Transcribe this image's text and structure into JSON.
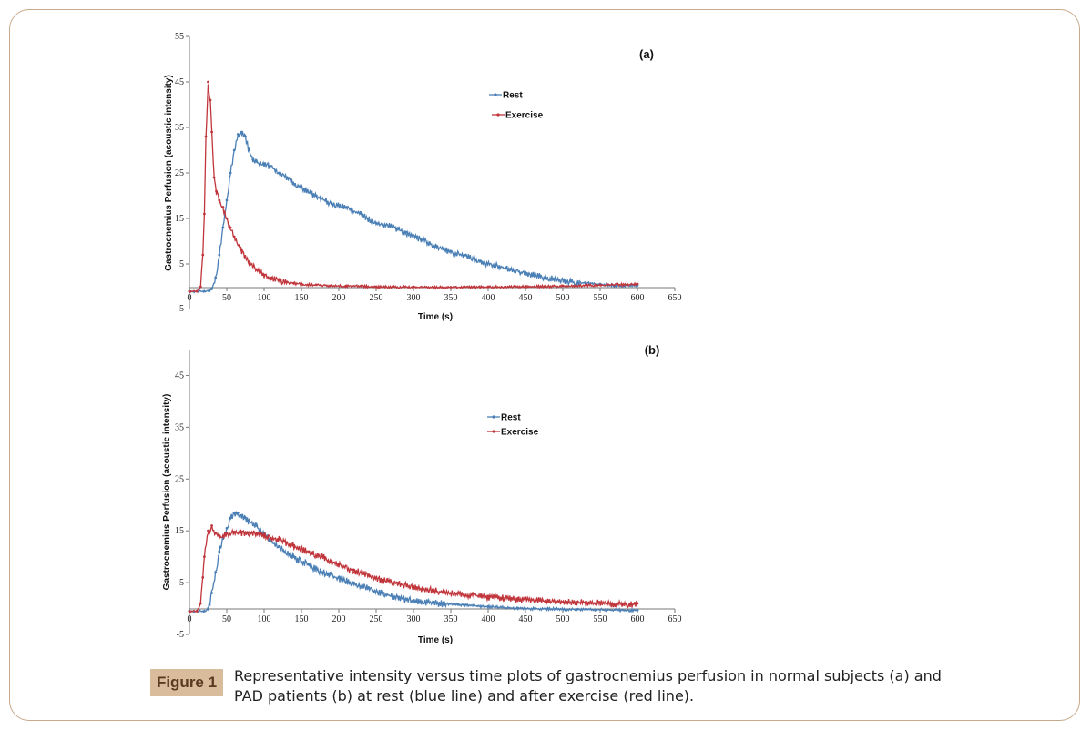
{
  "caption": {
    "label": "Figure 1",
    "text": "Representative intensity versus time plots of gastrocnemius perfusion in normal subjects (a) and PAD patients (b) at rest (blue line) and after exercise (red line)."
  },
  "colors": {
    "rest": "#4a7fb5",
    "exercise": "#c0353b",
    "axis": "#777777"
  },
  "chart_data": [
    {
      "type": "line",
      "panel_label": "(a)",
      "xlabel": "Time (s)",
      "ylabel": "Gastrocnemius Perfusion (acoustic intensity)",
      "xlim": [
        0,
        650
      ],
      "ylim": [
        -5,
        55
      ],
      "xticks": [
        0,
        50,
        100,
        150,
        200,
        250,
        300,
        350,
        400,
        450,
        500,
        550,
        600,
        650
      ],
      "yticks": [
        55,
        45,
        35,
        25,
        15,
        5
      ],
      "ytick_labels": [
        "55",
        "45",
        "35",
        "25",
        "15",
        "5"
      ],
      "bottom_tick_label": "5",
      "legend": [
        "Rest",
        "Exercise"
      ],
      "series": [
        {
          "name": "Rest",
          "x": [
            0,
            10,
            20,
            30,
            35,
            40,
            45,
            50,
            55,
            60,
            65,
            70,
            75,
            80,
            85,
            90,
            100,
            110,
            120,
            130,
            150,
            170,
            190,
            210,
            230,
            250,
            270,
            290,
            310,
            330,
            350,
            370,
            390,
            410,
            430,
            450,
            470,
            490,
            510,
            530,
            550,
            570,
            600
          ],
          "y": [
            -1,
            -1,
            -1,
            -0.5,
            2,
            7,
            13,
            19,
            25,
            30,
            33.5,
            34,
            33,
            30,
            28,
            27.5,
            27,
            26.5,
            25,
            24,
            22,
            20,
            18.5,
            17.5,
            16,
            14,
            13.5,
            12,
            10.5,
            9,
            7.8,
            7,
            5.6,
            4.8,
            3.9,
            3.1,
            2.4,
            1.8,
            1.2,
            0.9,
            0.6,
            0.3,
            0.3
          ]
        },
        {
          "name": "Exercise",
          "x": [
            0,
            10,
            15,
            18,
            20,
            22,
            25,
            28,
            30,
            33,
            36,
            40,
            45,
            50,
            55,
            60,
            70,
            80,
            90,
            100,
            110,
            120,
            130,
            140,
            150,
            170,
            190,
            210,
            230,
            250,
            300,
            350,
            400,
            450,
            500,
            550,
            600
          ],
          "y": [
            -1,
            -1,
            0,
            7,
            16,
            33,
            45,
            41,
            34,
            24,
            21,
            19,
            17.5,
            15,
            13,
            11,
            8,
            5.5,
            3.8,
            2.6,
            2,
            1.4,
            1,
            0.8,
            0.6,
            0.4,
            0.3,
            0.2,
            0.2,
            0,
            0,
            -0.1,
            0,
            0.1,
            0.2,
            0.4,
            0.6
          ]
        }
      ]
    },
    {
      "type": "line",
      "panel_label": "(b)",
      "xlabel": "Time (s)",
      "ylabel": "Gastrocnemius Perfusion (acoustic intensity)",
      "xlim": [
        0,
        650
      ],
      "ylim": [
        -5,
        50
      ],
      "xticks": [
        0,
        50,
        100,
        150,
        200,
        250,
        300,
        350,
        400,
        450,
        500,
        550,
        600,
        650
      ],
      "yticks": [
        45,
        35,
        25,
        15,
        5,
        -5
      ],
      "ytick_labels": [
        "45",
        "35",
        "25",
        "15",
        "5",
        "-5"
      ],
      "legend": [
        "Rest",
        "Exercise"
      ],
      "series": [
        {
          "name": "Rest",
          "x": [
            0,
            10,
            20,
            25,
            30,
            35,
            40,
            45,
            50,
            55,
            60,
            65,
            70,
            75,
            80,
            90,
            100,
            110,
            120,
            140,
            160,
            180,
            200,
            220,
            240,
            260,
            280,
            300,
            330,
            360,
            400,
            440,
            480,
            520,
            560,
            600
          ],
          "y": [
            -0.5,
            -0.5,
            -0.5,
            0,
            3,
            7,
            11,
            13.5,
            15.5,
            17.5,
            18.5,
            18.5,
            18,
            17.5,
            17,
            16,
            14.5,
            13,
            12,
            10,
            8.5,
            7,
            6,
            5,
            4,
            3,
            2.2,
            1.6,
            1.2,
            0.8,
            0.4,
            0.1,
            0,
            -0.1,
            -0.2,
            -0.3
          ]
        },
        {
          "name": "Exercise",
          "x": [
            0,
            10,
            15,
            18,
            20,
            25,
            30,
            35,
            40,
            50,
            60,
            70,
            80,
            90,
            100,
            120,
            140,
            160,
            180,
            200,
            220,
            240,
            260,
            280,
            300,
            330,
            360,
            400,
            440,
            480,
            520,
            560,
            600
          ],
          "y": [
            -0.5,
            -0.5,
            1,
            6,
            10,
            15,
            16,
            14.5,
            14,
            14.5,
            14.8,
            14.8,
            14.7,
            14.5,
            14.2,
            13.5,
            12.2,
            11,
            10,
            8.5,
            7.5,
            6.5,
            5.5,
            5,
            4.2,
            3.5,
            3,
            2.4,
            2,
            1.6,
            1.3,
            1.1,
            1
          ]
        }
      ]
    }
  ]
}
